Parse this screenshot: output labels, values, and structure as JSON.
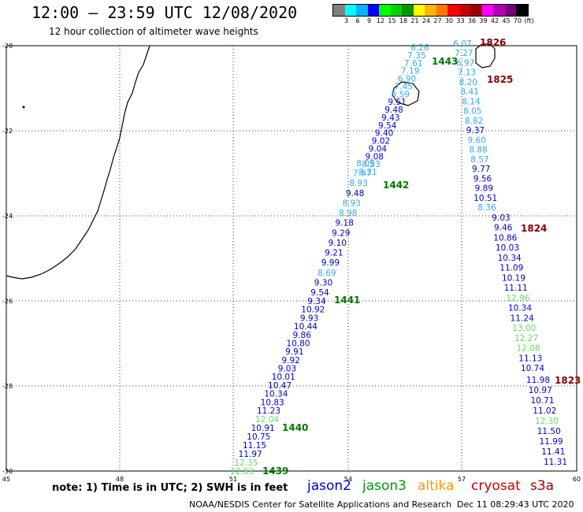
{
  "header": {
    "title": "12:00 – 23:59 UTC 12/08/2020",
    "subtitle": "12 hour collection of altimeter wave heights"
  },
  "legend": {
    "colors": [
      "#808080",
      "#00ffff",
      "#00b4ff",
      "#0000ff",
      "#00ff00",
      "#00d200",
      "#009600",
      "#ffff00",
      "#ffb400",
      "#ff7800",
      "#ff0000",
      "#c80000",
      "#960000",
      "#ff00ff",
      "#b400b4",
      "#780078",
      "#000000"
    ],
    "labels": [
      "3",
      "6",
      "9",
      "12",
      "15",
      "18",
      "21",
      "24",
      "27",
      "30",
      "33",
      "36",
      "39",
      "42",
      "45",
      "70",
      "(ft)"
    ]
  },
  "map": {
    "lat_ticks": [
      "-20",
      "-22",
      "-24",
      "-26",
      "-28",
      "-30"
    ],
    "lon_ticks": [
      "45",
      "48",
      "51",
      "54",
      "57",
      "60"
    ],
    "tracks": [
      {
        "satellite": "jason2/3",
        "label": "1440",
        "points": [
          [
            "12.04",
            "#66dd66"
          ],
          [
            "10.91",
            "#0000cc"
          ],
          [
            "10.75",
            "#0000cc"
          ],
          [
            "11.15",
            "#0000cc"
          ],
          [
            "11.97",
            "#0000cc"
          ],
          [
            "12.35",
            "#66dd66"
          ],
          [
            "12.83",
            "#66dd66"
          ]
        ]
      },
      {
        "satellite": "jason3",
        "label": "1441",
        "points": [
          [
            "9.34",
            "#0000cc"
          ],
          [
            "10.92",
            "#0000cc"
          ],
          [
            "9.93",
            "#0000cc"
          ],
          [
            "10.44",
            "#0000cc"
          ],
          [
            "9.86",
            "#0000cc"
          ],
          [
            "10.80",
            "#0000cc"
          ],
          [
            "9.91",
            "#0000cc"
          ],
          [
            "9.92",
            "#0000cc"
          ],
          [
            "9.03",
            "#0000cc"
          ],
          [
            "10.01",
            "#0000cc"
          ],
          [
            "10.47",
            "#0000cc"
          ],
          [
            "10.34",
            "#0000cc"
          ],
          [
            "10.83",
            "#0000cc"
          ],
          [
            "11.23",
            "#0000cc"
          ]
        ]
      },
      {
        "satellite": "jason3",
        "label": "1442",
        "points": [
          [
            "8.09",
            "#33aaee"
          ],
          [
            "7.97",
            "#33aaee"
          ],
          [
            "8.93",
            "#33aaee"
          ],
          [
            "9.48",
            "#0000cc"
          ],
          [
            "8.93",
            "#33aaee"
          ],
          [
            "8.98",
            "#33aaee"
          ],
          [
            "9.18",
            "#0000cc"
          ],
          [
            "9.29",
            "#0000cc"
          ],
          [
            "9.10",
            "#0000cc"
          ],
          [
            "9.21",
            "#0000cc"
          ],
          [
            "9.99",
            "#0000cc"
          ],
          [
            "8.69",
            "#33aaee"
          ],
          [
            "9.30",
            "#0000cc"
          ],
          [
            "9.54",
            "#0000cc"
          ]
        ]
      },
      {
        "satellite": "jason3",
        "label": "1443",
        "points": [
          [
            "6.26",
            "#33aaee"
          ],
          [
            "7.35",
            "#33aaee"
          ],
          [
            "7.61",
            "#33aaee"
          ],
          [
            "7.19",
            "#33aaee"
          ],
          [
            "6.90",
            "#33aaee"
          ],
          [
            "7.45",
            "#33aaee"
          ],
          [
            "8.59",
            "#33aaee"
          ],
          [
            "9.51",
            "#0000cc"
          ],
          [
            "9.48",
            "#0000cc"
          ],
          [
            "9.43",
            "#0000cc"
          ],
          [
            "9.54",
            "#0000cc"
          ],
          [
            "9.40",
            "#0000cc"
          ],
          [
            "9.02",
            "#0000cc"
          ],
          [
            "9.04",
            "#0000cc"
          ],
          [
            "9.08",
            "#0000cc"
          ],
          [
            "8.53",
            "#33aaee"
          ],
          [
            "8.31",
            "#33aaee"
          ]
        ]
      },
      {
        "satellite": "cryosat",
        "label": "1826",
        "points": [
          [
            "6.07",
            "#33aaee"
          ],
          [
            "7.27",
            "#33aaee"
          ],
          [
            "6.97",
            "#33aaee"
          ],
          [
            "7.13",
            "#33aaee"
          ],
          [
            "8.20",
            "#33aaee"
          ],
          [
            "8.41",
            "#33aaee"
          ],
          [
            "8.14",
            "#33aaee"
          ],
          [
            "8.05",
            "#33aaee"
          ],
          [
            "8.82",
            "#33aaee"
          ],
          [
            "9.37",
            "#0000cc"
          ],
          [
            "9.60",
            "#33aaee"
          ],
          [
            "8.88",
            "#33aaee"
          ],
          [
            "8.57",
            "#33aaee"
          ],
          [
            "9.77",
            "#0000cc"
          ],
          [
            "9.56",
            "#0000cc"
          ],
          [
            "9.89",
            "#0000cc"
          ],
          [
            "10.51",
            "#0000cc"
          ],
          [
            "8.36",
            "#33aaee"
          ]
        ]
      },
      {
        "satellite": "cryosat",
        "label": "1824",
        "points": [
          [
            "9.03",
            "#0000cc"
          ],
          [
            "9.46",
            "#0000cc"
          ],
          [
            "10.86",
            "#0000cc"
          ],
          [
            "10.03",
            "#0000cc"
          ],
          [
            "10.34",
            "#0000cc"
          ],
          [
            "11.09",
            "#0000cc"
          ],
          [
            "10.19",
            "#0000cc"
          ],
          [
            "11.11",
            "#0000cc"
          ],
          [
            "12.96",
            "#66dd66"
          ],
          [
            "10.34",
            "#0000cc"
          ],
          [
            "11.24",
            "#0000cc"
          ],
          [
            "13.00",
            "#66dd66"
          ],
          [
            "12.27",
            "#66dd66"
          ],
          [
            "12.08",
            "#66dd66"
          ],
          [
            "11.13",
            "#0000cc"
          ],
          [
            "10.74",
            "#0000cc"
          ]
        ]
      },
      {
        "satellite": "cryosat",
        "label": "1823",
        "points": [
          [
            "11.98",
            "#0000cc"
          ],
          [
            "10.97",
            "#0000cc"
          ],
          [
            "10.71",
            "#0000cc"
          ],
          [
            "11.02",
            "#0000cc"
          ],
          [
            "12.30",
            "#66dd66"
          ],
          [
            "11.50",
            "#0000cc"
          ],
          [
            "11.99",
            "#0000cc"
          ],
          [
            "11.41",
            "#0000cc"
          ],
          [
            "11.31",
            "#0000cc"
          ]
        ]
      }
    ],
    "pass_labels": [
      {
        "text": "1439",
        "color": "#007700"
      },
      {
        "text": "1440",
        "color": "#007700"
      },
      {
        "text": "1441",
        "color": "#007700"
      },
      {
        "text": "1442",
        "color": "#007700"
      },
      {
        "text": "1443",
        "color": "#007700"
      },
      {
        "text": "1826",
        "color": "#880000"
      },
      {
        "text": "1825",
        "color": "#880000"
      },
      {
        "text": "1824",
        "color": "#880000"
      },
      {
        "text": "1823",
        "color": "#880000"
      }
    ]
  },
  "footer": {
    "note": "note:  1) Time is in UTC;  2) SWH is in feet",
    "satellites": [
      {
        "name": "jason2",
        "color": "#0000dd"
      },
      {
        "name": "jason3",
        "color": "#009900"
      },
      {
        "name": "altika",
        "color": "#ff9900"
      },
      {
        "name": "cryosat",
        "color": "#cc0000"
      },
      {
        "name": "s3a",
        "color": "#990000"
      }
    ],
    "credit": "NOAA/NESDIS Center for Satellite Applications and Research",
    "timestamp": "Dec 11 08:29:43 UTC 2020"
  }
}
